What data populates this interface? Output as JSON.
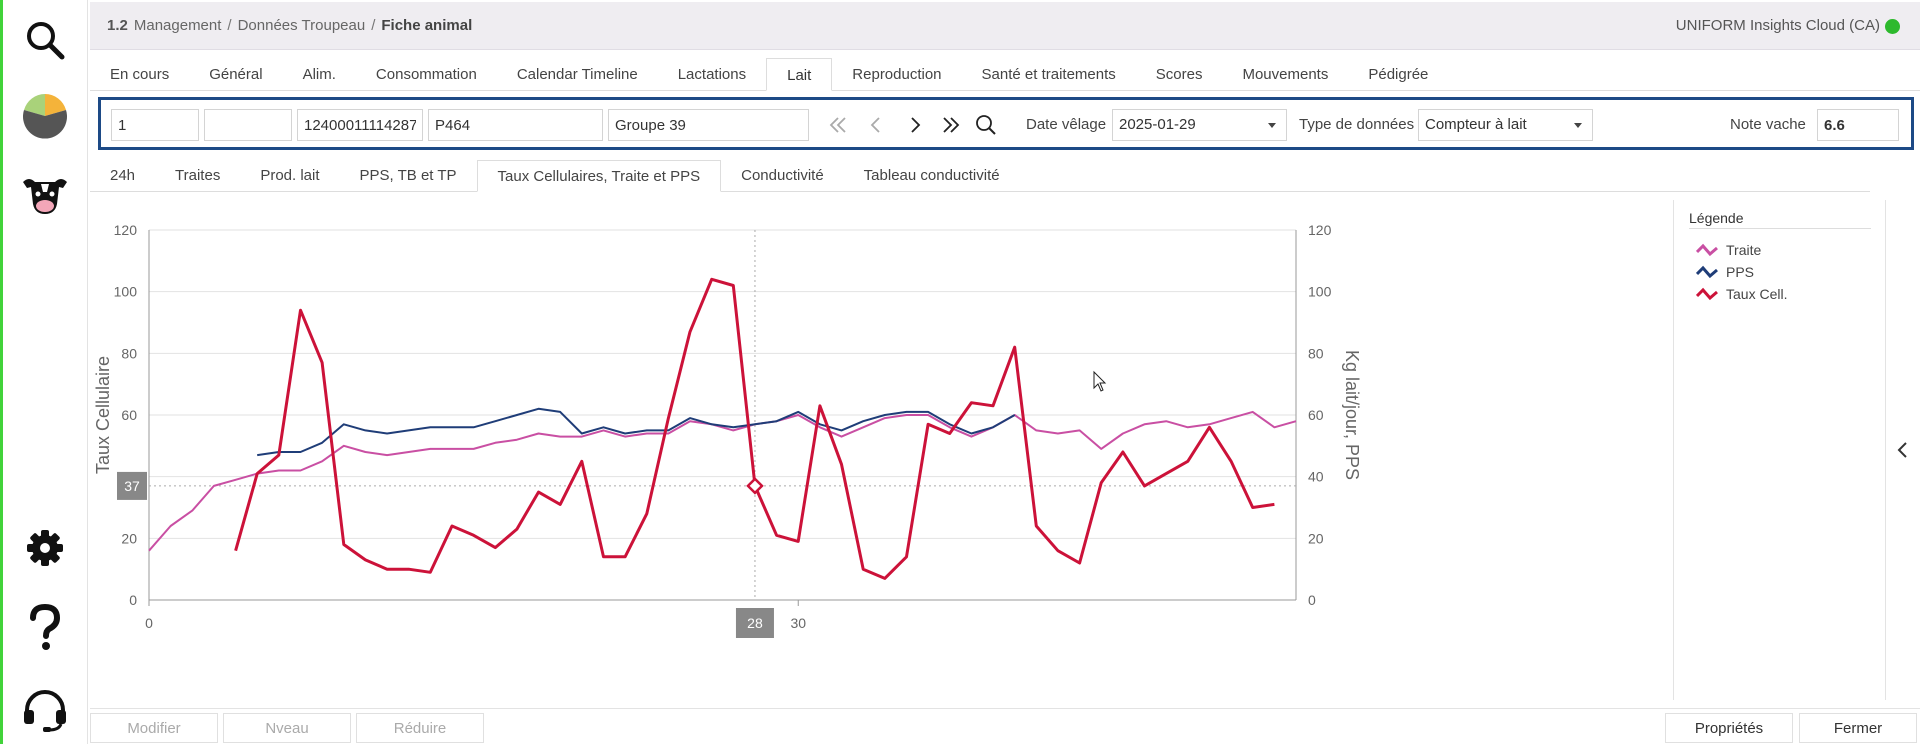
{
  "sidebar": {
    "items": [
      {
        "name": "search-icon"
      },
      {
        "name": "pie-chart-icon"
      },
      {
        "name": "cow-icon"
      },
      {
        "name": "gear-icon"
      },
      {
        "name": "help-icon"
      },
      {
        "name": "headset-icon"
      }
    ]
  },
  "header": {
    "number": "1.2",
    "crumbs": [
      "Management",
      "Données Troupeau"
    ],
    "current": "Fiche animal",
    "org": "UNIFORM Insights Cloud (CA)",
    "status_color": "#2db92d"
  },
  "main_tabs": [
    "En cours",
    "Général",
    "Alim.",
    "Consommation",
    "Calendar Timeline",
    "Lactations",
    "Lait",
    "Reproduction",
    "Santé et traitements",
    "Scores",
    "Mouvements",
    "Pédigrée"
  ],
  "main_tab_active": 6,
  "toolbar": {
    "field1": "1",
    "field2": "",
    "animal_id": "12400011114287",
    "animal_name": "P464",
    "group": "Groupe 39",
    "date_label": "Date vêlage",
    "date_value": "2025-01-29",
    "type_label": "Type de données",
    "type_value": "Compteur à lait",
    "note_label": "Note vache",
    "note_value": "6.6"
  },
  "sub_tabs": [
    "24h",
    "Traites",
    "Prod. lait",
    "PPS, TB et TP",
    "Taux Cellulaires, Traite et PPS",
    "Conductivité",
    "Tableau conductivité"
  ],
  "sub_tab_active": 4,
  "chart_data": {
    "type": "line",
    "ylabel": "Taux Cellulaire",
    "y2label": "Kg lait/jour, PPS",
    "ylim": [
      0,
      120
    ],
    "y_ticks": [
      0,
      20,
      40,
      60,
      80,
      100,
      120
    ],
    "x_ticks": [
      0,
      30
    ],
    "xlim": [
      0,
      53
    ],
    "crosshair": {
      "x": 28,
      "y": 37,
      "x_label": "28",
      "y_label": "37"
    },
    "grid": true,
    "legend": "right",
    "series": [
      {
        "name": "Traite",
        "color": "#c94fa3",
        "x": [
          0,
          1,
          2,
          3,
          4,
          5,
          6,
          7,
          8,
          9,
          10,
          11,
          12,
          13,
          14,
          15,
          16,
          17,
          18,
          19,
          20,
          21,
          22,
          23,
          24,
          25,
          26,
          27,
          28,
          29,
          30,
          31,
          32,
          33,
          34,
          35,
          36,
          37,
          38,
          39,
          40,
          41,
          42,
          43,
          44,
          45,
          46,
          47,
          48,
          49,
          50,
          51,
          52,
          53
        ],
        "y": [
          16,
          24,
          29,
          37,
          39,
          41,
          42,
          42,
          45,
          50,
          48,
          47,
          48,
          49,
          49,
          49,
          51,
          52,
          54,
          53,
          53,
          55,
          53,
          54,
          54,
          58,
          57,
          55,
          57,
          58,
          60,
          56,
          53,
          56,
          59,
          60,
          60,
          56,
          53,
          56,
          60,
          55,
          54,
          55,
          49,
          54,
          57,
          58,
          56,
          57,
          59,
          61,
          56,
          58
        ]
      },
      {
        "name": "PPS",
        "color": "#1f3d78",
        "x": [
          5,
          6,
          7,
          8,
          9,
          10,
          11,
          12,
          13,
          14,
          15,
          16,
          17,
          18,
          19,
          20,
          21,
          22,
          23,
          24,
          25,
          26,
          27,
          28,
          29,
          30,
          31,
          32,
          33,
          34,
          35,
          36,
          37,
          38,
          39,
          40
        ],
        "y": [
          47,
          48,
          48,
          51,
          57,
          55,
          54,
          55,
          56,
          56,
          56,
          58,
          60,
          62,
          61,
          54,
          56,
          54,
          55,
          55,
          59,
          57,
          56,
          57,
          58,
          61,
          57,
          55,
          58,
          60,
          61,
          61,
          57,
          54,
          56,
          60
        ]
      },
      {
        "name": "Taux Cell.",
        "color": "#cc1239",
        "x": [
          4,
          5,
          6,
          7,
          8,
          9,
          10,
          11,
          12,
          13,
          14,
          15,
          16,
          17,
          18,
          19,
          20,
          21,
          22,
          23,
          24,
          25,
          26,
          27,
          28,
          29,
          30,
          31,
          32,
          33,
          34,
          35,
          36,
          37,
          38,
          39,
          40,
          41,
          42,
          43,
          44,
          45,
          46,
          47,
          48,
          49,
          50,
          51,
          52
        ],
        "y": [
          16,
          41,
          47,
          94,
          77,
          18,
          13,
          10,
          10,
          9,
          24,
          21,
          17,
          23,
          35,
          31,
          45,
          14,
          14,
          28,
          59,
          87,
          104,
          102,
          37,
          21,
          19,
          63,
          44,
          10,
          7,
          14,
          57,
          54,
          64,
          63,
          82,
          24,
          16,
          12,
          38,
          48,
          37,
          41,
          45,
          56,
          45,
          30,
          31
        ]
      }
    ]
  },
  "legend": {
    "title": "Légende"
  },
  "footer": {
    "modify": "Modifier",
    "new": "Nveau",
    "reduce": "Réduire",
    "properties": "Propriétés",
    "close": "Fermer"
  }
}
